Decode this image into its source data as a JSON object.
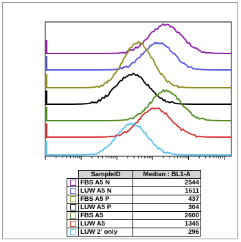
{
  "chart_data": {
    "type": "line",
    "subtype": "offset-histogram-overlay",
    "xscale": "log",
    "table_headers": [
      "SampleID",
      "Median : BL1-A"
    ],
    "series": [
      {
        "name": "FBS A5 N",
        "median": "2544",
        "color": "#8b1aa6",
        "peak_x": 2544,
        "peak_height": 1.0,
        "spread": 0.45
      },
      {
        "name": "LUW A5 N",
        "median": "1611",
        "color": "#5555e0",
        "peak_x": 1611,
        "peak_height": 1.0,
        "spread": 0.42
      },
      {
        "name": "FBS A5 P",
        "median": "437",
        "color": "#8c8c1e",
        "peak_x": 437,
        "peak_height": 1.0,
        "spread": 0.42
      },
      {
        "name": "LUW A5 P",
        "median": "304",
        "color": "#000000",
        "peak_x": 304,
        "peak_height": 1.0,
        "spread": 0.45
      },
      {
        "name": "FBS A5",
        "median": "2600",
        "color": "#4f8a1e",
        "peak_x": 2600,
        "peak_height": 1.0,
        "spread": 0.42
      },
      {
        "name": "LUW A5",
        "median": "1345",
        "color": "#d23030",
        "peak_x": 1345,
        "peak_height": 1.0,
        "spread": 0.45
      },
      {
        "name": "LUW 2' only",
        "median": "296",
        "color": "#5bc0ee",
        "peak_x": 296,
        "peak_height": 1.0,
        "spread": 0.42
      }
    ],
    "grid": false,
    "legend": "bottom"
  }
}
